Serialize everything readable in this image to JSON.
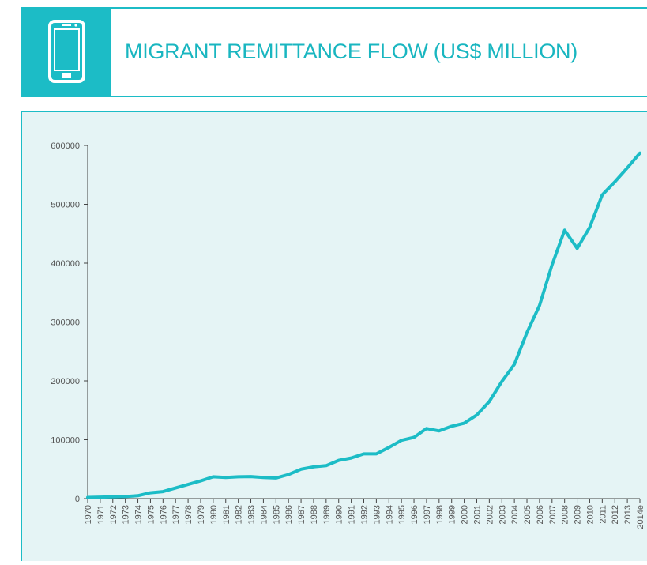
{
  "header": {
    "title": "MIGRANT REMITTANCE FLOW (US$ MILLION)",
    "icon": "smartphone-icon",
    "accent_color": "#1cbcc6"
  },
  "chart_data": {
    "type": "line",
    "title": "MIGRANT REMITTANCE FLOW (US$ MILLION)",
    "xlabel": "",
    "ylabel": "",
    "ylim": [
      0,
      600000
    ],
    "yticks": [
      0,
      100000,
      200000,
      300000,
      400000,
      500000,
      600000
    ],
    "grid": false,
    "legend": "none",
    "line_color": "#1cbcc6",
    "categories": [
      "1970",
      "1971",
      "1972",
      "1973",
      "1974",
      "1975",
      "1976",
      "1977",
      "1978",
      "1979",
      "1980",
      "1981",
      "1982",
      "1983",
      "1984",
      "1985",
      "1986",
      "1987",
      "1988",
      "1989",
      "1990",
      "1991",
      "1992",
      "1993",
      "1994",
      "1995",
      "1996",
      "1997",
      "1998",
      "1999",
      "2000",
      "2001",
      "2002",
      "2003",
      "2004",
      "2005",
      "2006",
      "2007",
      "2008",
      "2009",
      "2010",
      "2011",
      "2012",
      "2013",
      "2014e"
    ],
    "series": [
      {
        "values": [
          2000,
          2500,
          3000,
          3500,
          5000,
          10000,
          12000,
          18000,
          24000,
          30000,
          37000,
          36000,
          37000,
          37500,
          36000,
          35000,
          41000,
          50000,
          54000,
          56000,
          65000,
          69000,
          76000,
          76000,
          87000,
          99000,
          104000,
          119000,
          115000,
          123000,
          128000,
          142000,
          165000,
          199000,
          228000,
          282000,
          328000,
          397000,
          456000,
          425000,
          461000,
          516000,
          538000,
          562000,
          587000
        ]
      }
    ]
  }
}
